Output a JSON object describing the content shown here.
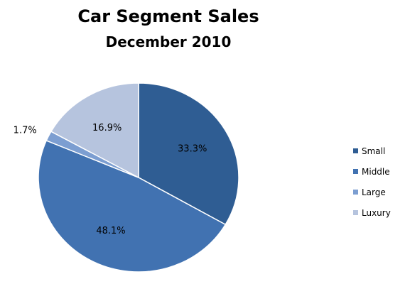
{
  "chart_data": {
    "type": "pie",
    "title": "Car Segment Sales",
    "subtitle": "December 2010",
    "categories": [
      "Small",
      "Middle",
      "Large",
      "Luxury"
    ],
    "values": [
      33.3,
      48.1,
      1.7,
      16.9
    ],
    "value_labels": [
      "33.3%",
      "48.1%",
      "1.7%",
      "16.9%"
    ],
    "colors": [
      "#2f5d93",
      "#4172b1",
      "#7c9ed1",
      "#b6c4de"
    ],
    "legend_position": "right",
    "start_angle_deg": 0,
    "direction": "clockwise"
  }
}
